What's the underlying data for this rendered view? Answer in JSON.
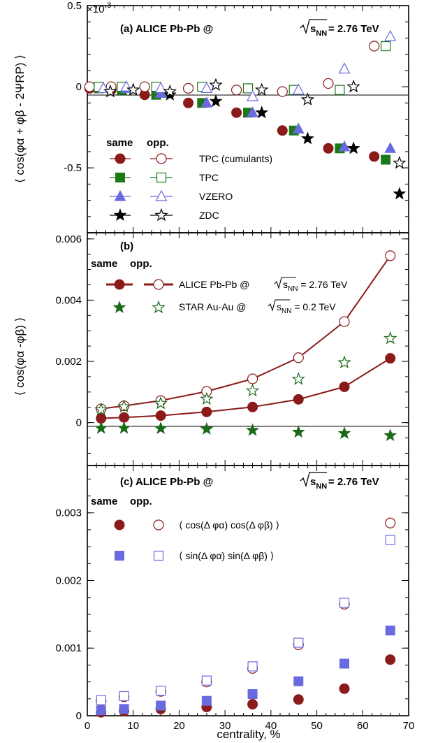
{
  "figure": {
    "xlabel": "centrality, %",
    "x_ticks": [
      "0",
      "10",
      "20",
      "30",
      "40",
      "50",
      "60",
      "70"
    ]
  },
  "colors": {
    "tpc_cumulants": "#8b1a1a",
    "tpc": "#1a7a1a",
    "vzero": "#6a6ae0",
    "zdc": "#000000",
    "star": "#1a6a1a",
    "sin": "#6a6ae0"
  },
  "panels": {
    "a": {
      "title_prefix": "(a)   ALICE Pb-Pb @",
      "title_sqrt": "s",
      "title_sub": "NN",
      "title_suffix": " = 2.76 TeV",
      "exponent": "×10",
      "exponent_power": "-3",
      "ylabel": "⟨ cos(φα + φβ - 2ΨRP) ⟩",
      "y_ticks": [
        "0.5",
        "0",
        "-0.5"
      ],
      "legend_same": "same",
      "legend_opp": "opp.",
      "legend_labels": [
        "TPC (cumulants)",
        "TPC",
        "VZERO",
        "ZDC"
      ]
    },
    "b": {
      "title": "(b)",
      "ylabel": "⟨ cos(φα -φβ) ⟩",
      "y_ticks": [
        "0.006",
        "0.004",
        "0.002",
        "0"
      ],
      "legend_same": "same",
      "legend_opp": "opp.",
      "legend_alice_prefix": "ALICE Pb-Pb @ ",
      "legend_alice_sub": "NN",
      "legend_alice_suffix": " = 2.76 TeV",
      "legend_star_prefix": "STAR Au-Au @ ",
      "legend_star_sub": "NN",
      "legend_star_suffix": " = 0.2 TeV",
      "sqrt_s": "s"
    },
    "c": {
      "title_prefix": "(c)   ALICE Pb-Pb @",
      "title_sqrt": "s",
      "title_sub": "NN",
      "title_suffix": " = 2.76 TeV",
      "y_ticks": [
        "0.003",
        "0.002",
        "0.001",
        "0"
      ],
      "legend_same": "same",
      "legend_opp": "opp.",
      "legend_cos": "⟨ cos(Δ φα) cos(Δ φβ) ⟩",
      "legend_sin": "⟨ sin(Δ φα) sin(Δ φβ) ⟩"
    }
  },
  "chart_data": [
    {
      "type": "scatter",
      "panel": "a",
      "xlim": [
        0,
        70
      ],
      "ylim": [
        -0.9,
        0.5
      ],
      "y_scale_note": "×10^-3",
      "series": [
        {
          "name": "TPC (cumulants)",
          "kind": "same",
          "marker": "circle-filled",
          "color": "#8b1a1a",
          "x": [
            0.5,
            5.2,
            12.5,
            22,
            32.5,
            42.5,
            52.5,
            62.5
          ],
          "y": [
            -0.01,
            -0.02,
            -0.05,
            -0.1,
            -0.16,
            -0.27,
            -0.38,
            -0.43
          ]
        },
        {
          "name": "TPC (cumulants)",
          "kind": "opp",
          "marker": "circle-open",
          "color": "#8b1a1a",
          "x": [
            0.5,
            5.2,
            12.5,
            22,
            32.5,
            42.5,
            52.5,
            62.5
          ],
          "y": [
            0.0,
            0.0,
            0.0,
            -0.01,
            -0.02,
            -0.03,
            0.02,
            0.25
          ]
        },
        {
          "name": "TPC",
          "kind": "same",
          "marker": "square-filled",
          "color": "#1a7a1a",
          "x": [
            2.5,
            7.5,
            15,
            25,
            35,
            45,
            55,
            65
          ],
          "y": [
            -0.01,
            -0.02,
            -0.05,
            -0.1,
            -0.16,
            -0.27,
            -0.38,
            -0.45
          ]
        },
        {
          "name": "TPC",
          "kind": "opp",
          "marker": "square-open",
          "color": "#1a7a1a",
          "x": [
            2.5,
            7.5,
            15,
            25,
            35,
            45,
            55,
            65
          ],
          "y": [
            0.0,
            0.0,
            0.0,
            0.0,
            -0.01,
            -0.02,
            -0.02,
            0.25
          ]
        },
        {
          "name": "VZERO",
          "kind": "same",
          "marker": "triangle-filled",
          "color": "#6a6ae0",
          "x": [
            3.5,
            8.5,
            16,
            26,
            36,
            46,
            56,
            66
          ],
          "y": [
            -0.01,
            -0.01,
            -0.04,
            -0.1,
            -0.16,
            -0.26,
            -0.37,
            -0.38
          ]
        },
        {
          "name": "VZERO",
          "kind": "opp",
          "marker": "triangle-open",
          "color": "#6a6ae0",
          "x": [
            3.5,
            8.5,
            16,
            26,
            36,
            46,
            56,
            66
          ],
          "y": [
            -0.01,
            0.0,
            -0.01,
            -0.01,
            -0.06,
            -0.02,
            0.11,
            0.31
          ]
        },
        {
          "name": "ZDC",
          "kind": "same",
          "marker": "star-filled",
          "color": "#000000",
          "x": [
            5,
            10,
            18,
            28,
            38,
            48,
            58,
            68
          ],
          "y": [
            -0.03,
            -0.02,
            -0.05,
            -0.09,
            -0.16,
            -0.32,
            -0.38,
            -0.66
          ]
        },
        {
          "name": "ZDC",
          "kind": "opp",
          "marker": "star-open",
          "color": "#000000",
          "x": [
            5,
            10,
            18,
            28,
            38,
            48,
            58,
            68
          ],
          "y": [
            -0.03,
            -0.02,
            -0.03,
            0.01,
            -0.02,
            -0.08,
            0.0,
            -0.47
          ]
        }
      ]
    },
    {
      "type": "line",
      "panel": "b",
      "xlim": [
        0,
        70
      ],
      "ylim": [
        -0.0014,
        0.0062
      ],
      "series": [
        {
          "name": "ALICE Pb-Pb @ √sNN = 2.76 TeV",
          "kind": "same",
          "marker": "circle-filled",
          "color": "#8b1a1a",
          "x": [
            3,
            8,
            16,
            26,
            36,
            46,
            56,
            66
          ],
          "y": [
            0.00014,
            0.00017,
            0.00023,
            0.00035,
            0.00051,
            0.00076,
            0.00117,
            0.0021
          ]
        },
        {
          "name": "ALICE Pb-Pb @ √sNN = 2.76 TeV",
          "kind": "opp",
          "marker": "circle-open",
          "color": "#8b1a1a",
          "x": [
            3,
            8,
            16,
            26,
            36,
            46,
            56,
            66
          ],
          "y": [
            0.00045,
            0.00055,
            0.00072,
            0.00102,
            0.00143,
            0.00212,
            0.0033,
            0.00545
          ]
        },
        {
          "name": "STAR Au-Au @ √sNN = 0.2 TeV",
          "kind": "same",
          "marker": "star-filled",
          "color": "#1a6a1a",
          "x": [
            3,
            8,
            16,
            26,
            36,
            46,
            56,
            66
          ],
          "y": [
            -0.00018,
            -0.00018,
            -0.00019,
            -0.00021,
            -0.00025,
            -0.00031,
            -0.00035,
            -0.00042
          ]
        },
        {
          "name": "STAR Au-Au @ √sNN = 0.2 TeV",
          "kind": "opp",
          "marker": "star-open",
          "color": "#1a6a1a",
          "x": [
            3,
            8,
            16,
            26,
            36,
            46,
            56,
            66
          ],
          "y": [
            0.00042,
            0.00052,
            0.00063,
            0.00077,
            0.00104,
            0.00142,
            0.00196,
            0.00275
          ]
        }
      ]
    },
    {
      "type": "scatter",
      "panel": "c",
      "xlim": [
        0,
        70
      ],
      "ylim": [
        0,
        0.0037
      ],
      "series": [
        {
          "name": "⟨ cos(Δ φα) cos(Δ φβ) ⟩",
          "kind": "same",
          "marker": "circle-filled",
          "color": "#8b1a1a",
          "x": [
            3,
            8,
            16,
            26,
            36,
            46,
            56,
            66
          ],
          "y": [
            5e-05,
            7e-05,
            0.0001,
            0.00013,
            0.00017,
            0.00024,
            0.0004,
            0.00083
          ]
        },
        {
          "name": "⟨ cos(Δ φα) cos(Δ φβ) ⟩",
          "kind": "opp",
          "marker": "circle-open",
          "color": "#8b1a1a",
          "x": [
            3,
            8,
            16,
            26,
            36,
            46,
            56,
            66
          ],
          "y": [
            0.00022,
            0.00028,
            0.00036,
            0.0005,
            0.0007,
            0.00105,
            0.00165,
            0.00285
          ]
        },
        {
          "name": "⟨ sin(Δ φα) sin(Δ φβ) ⟩",
          "kind": "same",
          "marker": "square-filled",
          "color": "#6a6ae0",
          "x": [
            3,
            8,
            16,
            26,
            36,
            46,
            56,
            66
          ],
          "y": [
            8e-05,
            0.0001,
            0.00015,
            0.00022,
            0.00032,
            0.00051,
            0.00077,
            0.00126
          ]
        },
        {
          "name": "⟨ sin(Δ φα) sin(Δ φβ) ⟩",
          "kind": "opp",
          "marker": "square-open",
          "color": "#6a6ae0",
          "x": [
            3,
            8,
            16,
            26,
            36,
            46,
            56,
            66
          ],
          "y": [
            0.00023,
            0.00029,
            0.00037,
            0.00052,
            0.00073,
            0.00108,
            0.00167,
            0.0026
          ]
        }
      ]
    }
  ]
}
